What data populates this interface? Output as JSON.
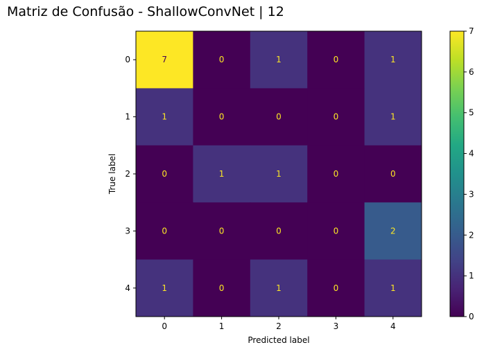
{
  "chart_data": {
    "type": "heatmap",
    "title": "Matriz de Confusão - ShallowConvNet | 12",
    "xlabel": "Predicted label",
    "ylabel": "True label",
    "x_categories": [
      "0",
      "1",
      "2",
      "3",
      "4"
    ],
    "y_categories": [
      "0",
      "1",
      "2",
      "3",
      "4"
    ],
    "matrix": [
      [
        7,
        0,
        1,
        0,
        1
      ],
      [
        1,
        0,
        0,
        0,
        1
      ],
      [
        0,
        1,
        1,
        0,
        0
      ],
      [
        0,
        0,
        0,
        0,
        2
      ],
      [
        1,
        0,
        1,
        0,
        1
      ]
    ],
    "colormap": "viridis",
    "colorbar": {
      "range": [
        0,
        7
      ],
      "ticks": [
        "0",
        "1",
        "2",
        "3",
        "4",
        "5",
        "6",
        "7"
      ]
    },
    "cell_text_colors": {
      "dark_cells": "#fde725",
      "bright_cells": "#440154"
    },
    "grid": false
  }
}
